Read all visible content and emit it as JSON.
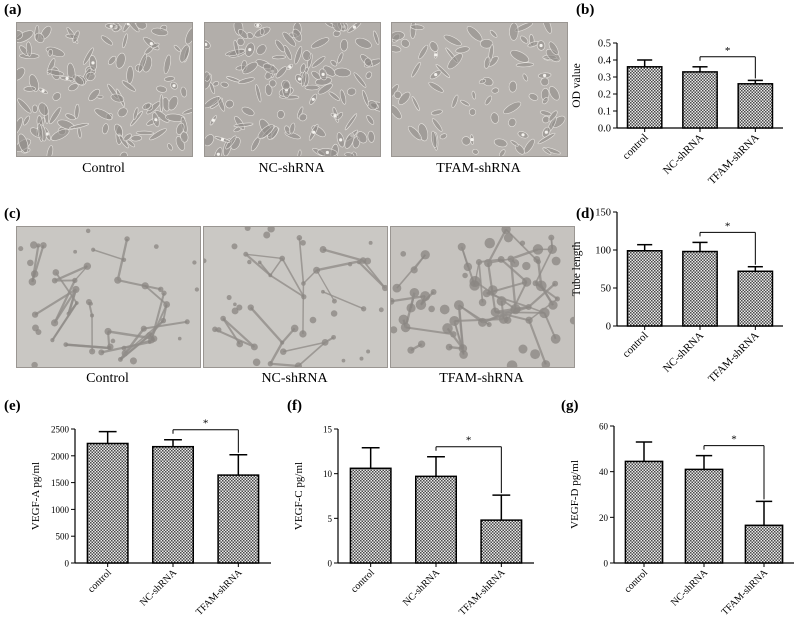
{
  "panels": {
    "a": {
      "label": "(a)",
      "captions": [
        "Control",
        "NC-shRNA",
        "TFAM-shRNA"
      ]
    },
    "c": {
      "label": "(c)",
      "captions": [
        "Control",
        "NC-shRNA",
        "TFAM-shRNA"
      ]
    }
  },
  "chart_data": [
    {
      "id": "b",
      "panel_label": "(b)",
      "type": "bar",
      "categories": [
        "control",
        "NC-shRNA",
        "TFAM-shRNA"
      ],
      "values": [
        0.36,
        0.33,
        0.26
      ],
      "errors": [
        0.04,
        0.03,
        0.02
      ],
      "ylabel": "OD value",
      "ylim": [
        0,
        0.5
      ],
      "yticks": [
        0.0,
        0.1,
        0.2,
        0.3,
        0.4,
        0.5
      ],
      "ytick_labels": [
        "0.0",
        "0.1",
        "0.2",
        "0.3",
        "0.4",
        "0.5"
      ],
      "significance": {
        "between": [
          1,
          2
        ],
        "marker": "*"
      }
    },
    {
      "id": "d",
      "panel_label": "(d)",
      "type": "bar",
      "categories": [
        "control",
        "NC-shRNA",
        "TFAM-shRNA"
      ],
      "values": [
        99,
        98,
        72
      ],
      "errors": [
        8,
        12,
        6
      ],
      "ylabel": "Tube length",
      "ylim": [
        0,
        150
      ],
      "yticks": [
        0,
        50,
        100,
        150
      ],
      "ytick_labels": [
        "0",
        "50",
        "100",
        "150"
      ],
      "significance": {
        "between": [
          1,
          2
        ],
        "marker": "*"
      }
    },
    {
      "id": "e",
      "panel_label": "(e)",
      "type": "bar",
      "categories": [
        "control",
        "NC-shRNA",
        "TFAM-shRNA"
      ],
      "values": [
        2230,
        2170,
        1640
      ],
      "errors": [
        220,
        130,
        380
      ],
      "ylabel": "VEGF-A pg/ml",
      "ylim": [
        0,
        2500
      ],
      "yticks": [
        0,
        500,
        1000,
        1500,
        2000,
        2500
      ],
      "ytick_labels": [
        "0",
        "500",
        "1000",
        "1500",
        "2000",
        "2500"
      ],
      "significance": {
        "between": [
          1,
          2
        ],
        "marker": "*"
      }
    },
    {
      "id": "f",
      "panel_label": "(f)",
      "type": "bar",
      "categories": [
        "control",
        "NC-shRNA",
        "TFAM-shRNA"
      ],
      "values": [
        10.6,
        9.7,
        4.8
      ],
      "errors": [
        2.3,
        2.2,
        2.8
      ],
      "ylabel": "VEGF-C pg/ml",
      "ylim": [
        0,
        15
      ],
      "yticks": [
        0,
        5,
        10,
        15
      ],
      "ytick_labels": [
        "0",
        "5",
        "10",
        "15"
      ],
      "significance": {
        "between": [
          1,
          2
        ],
        "marker": "*"
      }
    },
    {
      "id": "g",
      "panel_label": "(g)",
      "type": "bar",
      "categories": [
        "control",
        "NC-shRNA",
        "TFAM-shRNA"
      ],
      "values": [
        44.5,
        41,
        16.5
      ],
      "errors": [
        8.5,
        6,
        10.5
      ],
      "ylabel": "VEGF-D pg/ml",
      "ylim": [
        0,
        60
      ],
      "yticks": [
        0,
        20,
        40,
        60
      ],
      "ytick_labels": [
        "0",
        "20",
        "40",
        "60"
      ],
      "significance": {
        "between": [
          1,
          2
        ],
        "marker": "*"
      }
    }
  ]
}
